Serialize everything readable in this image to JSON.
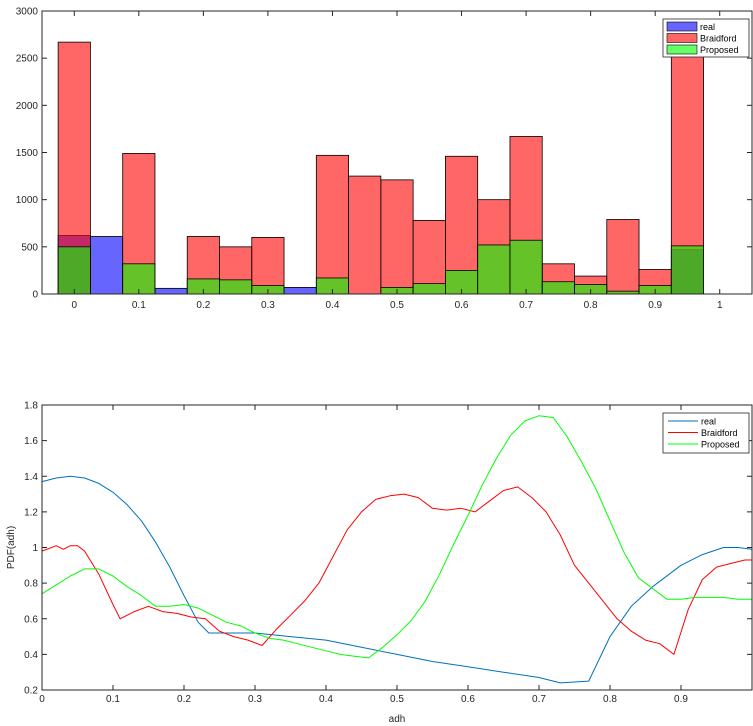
{
  "chart_data": [
    {
      "type": "bar",
      "chart_id": "hist",
      "title": "",
      "xlabel": "",
      "ylabel": "",
      "xlim": [
        -0.05,
        1.05
      ],
      "ylim": [
        0,
        3000
      ],
      "xticks": [
        "0",
        "0.1",
        "0.2",
        "0.3",
        "0.4",
        "0.5",
        "0.6",
        "0.7",
        "0.8",
        "0.9",
        "1"
      ],
      "yticks": [
        "0",
        "500",
        "1000",
        "1500",
        "2000",
        "2500",
        "3000"
      ],
      "grid": false,
      "legend_position": "top-right",
      "bin_centers": [
        0,
        0.05,
        0.1,
        0.15,
        0.2,
        0.25,
        0.3,
        0.35,
        0.4,
        0.45,
        0.5,
        0.55,
        0.6,
        0.65,
        0.7,
        0.75,
        0.8,
        0.85,
        0.9,
        0.95,
        1
      ],
      "bar_width": 0.05,
      "series": [
        {
          "name": "real",
          "color": "#0000ff",
          "opacity": 0.6,
          "values": [
            620,
            610,
            0,
            60,
            0,
            0,
            0,
            70,
            0,
            0,
            0,
            0,
            0,
            0,
            0,
            0,
            0,
            0,
            0,
            470,
            0
          ]
        },
        {
          "name": "Braidford",
          "color": "#ff0000",
          "opacity": 0.6,
          "values": [
            2670,
            0,
            1490,
            0,
            610,
            500,
            600,
            0,
            1470,
            1250,
            1210,
            780,
            1460,
            1000,
            1670,
            320,
            190,
            790,
            260,
            2650,
            0
          ]
        },
        {
          "name": "Proposed",
          "color": "#00ff00",
          "opacity": 0.6,
          "values": [
            500,
            0,
            320,
            0,
            160,
            150,
            90,
            0,
            170,
            0,
            70,
            110,
            250,
            520,
            570,
            130,
            100,
            30,
            90,
            510,
            0
          ]
        }
      ]
    },
    {
      "type": "line",
      "chart_id": "pdf",
      "title": "",
      "xlabel": "adh",
      "ylabel": "PDF(adh)",
      "xlim": [
        0,
        1
      ],
      "ylim": [
        0.2,
        1.8
      ],
      "xticks": [
        "0",
        "0.1",
        "0.2",
        "0.3",
        "0.4",
        "0.5",
        "0.6",
        "0.7",
        "0.8",
        "0.9"
      ],
      "yticks": [
        "0.2",
        "0.4",
        "0.6",
        "0.8",
        "1",
        "1.2",
        "1.4",
        "1.6",
        "1.8"
      ],
      "grid": false,
      "legend_position": "top-right",
      "series": [
        {
          "name": "real",
          "color": "#0072bd",
          "x": [
            0,
            0.02,
            0.04,
            0.06,
            0.08,
            0.1,
            0.12,
            0.14,
            0.16,
            0.18,
            0.2,
            0.22,
            0.235,
            0.25,
            0.3,
            0.35,
            0.4,
            0.45,
            0.5,
            0.55,
            0.6,
            0.65,
            0.7,
            0.73,
            0.77,
            0.8,
            0.83,
            0.86,
            0.9,
            0.93,
            0.96,
            0.98,
            1
          ],
          "y": [
            1.37,
            1.39,
            1.4,
            1.39,
            1.36,
            1.31,
            1.24,
            1.15,
            1.03,
            0.89,
            0.73,
            0.58,
            0.52,
            0.52,
            0.52,
            0.5,
            0.48,
            0.44,
            0.4,
            0.36,
            0.33,
            0.3,
            0.27,
            0.24,
            0.25,
            0.5,
            0.67,
            0.78,
            0.9,
            0.96,
            1.0,
            1.0,
            0.99
          ]
        },
        {
          "name": "Braidford",
          "color": "#ff0000",
          "x": [
            0,
            0.02,
            0.03,
            0.04,
            0.05,
            0.06,
            0.08,
            0.1,
            0.11,
            0.13,
            0.15,
            0.17,
            0.19,
            0.21,
            0.23,
            0.25,
            0.27,
            0.29,
            0.31,
            0.33,
            0.35,
            0.37,
            0.39,
            0.41,
            0.43,
            0.45,
            0.47,
            0.49,
            0.51,
            0.53,
            0.55,
            0.57,
            0.59,
            0.61,
            0.63,
            0.65,
            0.67,
            0.69,
            0.71,
            0.73,
            0.75,
            0.77,
            0.79,
            0.81,
            0.83,
            0.85,
            0.87,
            0.89,
            0.91,
            0.93,
            0.95,
            0.97,
            0.99,
            1
          ],
          "y": [
            0.98,
            1.01,
            0.99,
            1.01,
            1.01,
            0.98,
            0.85,
            0.68,
            0.6,
            0.64,
            0.67,
            0.64,
            0.63,
            0.61,
            0.6,
            0.53,
            0.5,
            0.48,
            0.45,
            0.54,
            0.62,
            0.7,
            0.8,
            0.95,
            1.1,
            1.2,
            1.27,
            1.29,
            1.3,
            1.28,
            1.22,
            1.21,
            1.22,
            1.2,
            1.26,
            1.32,
            1.34,
            1.28,
            1.2,
            1.07,
            0.9,
            0.8,
            0.7,
            0.6,
            0.53,
            0.48,
            0.46,
            0.4,
            0.65,
            0.82,
            0.89,
            0.91,
            0.93,
            0.93
          ]
        },
        {
          "name": "Proposed",
          "color": "#00ff00",
          "x": [
            0,
            0.02,
            0.04,
            0.06,
            0.08,
            0.1,
            0.12,
            0.14,
            0.16,
            0.18,
            0.2,
            0.22,
            0.24,
            0.26,
            0.28,
            0.3,
            0.32,
            0.34,
            0.36,
            0.38,
            0.4,
            0.42,
            0.44,
            0.46,
            0.48,
            0.5,
            0.52,
            0.54,
            0.56,
            0.58,
            0.6,
            0.62,
            0.64,
            0.66,
            0.68,
            0.7,
            0.72,
            0.74,
            0.76,
            0.78,
            0.8,
            0.82,
            0.84,
            0.86,
            0.88,
            0.9,
            0.92,
            0.94,
            0.96,
            0.98,
            1
          ],
          "y": [
            0.74,
            0.79,
            0.84,
            0.88,
            0.88,
            0.84,
            0.78,
            0.73,
            0.67,
            0.67,
            0.68,
            0.66,
            0.62,
            0.58,
            0.56,
            0.52,
            0.49,
            0.48,
            0.46,
            0.44,
            0.42,
            0.4,
            0.39,
            0.38,
            0.44,
            0.51,
            0.59,
            0.7,
            0.85,
            1.02,
            1.18,
            1.35,
            1.5,
            1.63,
            1.71,
            1.74,
            1.73,
            1.62,
            1.48,
            1.33,
            1.15,
            0.97,
            0.83,
            0.77,
            0.71,
            0.71,
            0.72,
            0.72,
            0.72,
            0.71,
            0.71
          ]
        }
      ]
    }
  ]
}
